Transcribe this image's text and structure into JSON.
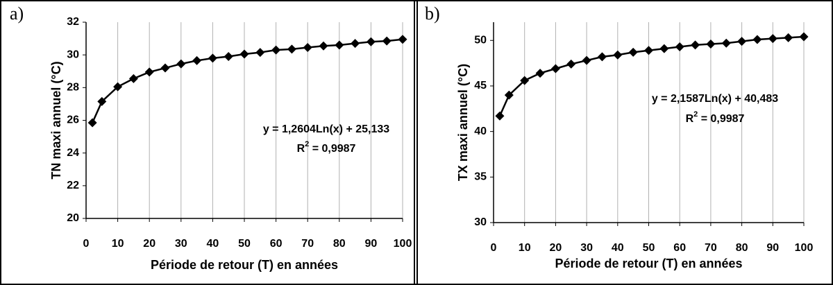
{
  "chart_data": [
    {
      "type": "line",
      "panel_label": "a)",
      "x": [
        2,
        5,
        10,
        15,
        20,
        25,
        30,
        35,
        40,
        45,
        50,
        55,
        60,
        65,
        70,
        75,
        80,
        85,
        90,
        95,
        100
      ],
      "series": [
        {
          "color": "#000000",
          "values": [
            25.85,
            27.15,
            28.05,
            28.55,
            28.95,
            29.2,
            29.45,
            29.65,
            29.8,
            29.9,
            30.05,
            30.15,
            30.3,
            30.35,
            30.45,
            30.55,
            30.6,
            30.7,
            30.8,
            30.85,
            30.95
          ]
        }
      ],
      "xlim": [
        0,
        100
      ],
      "xticks": [
        0,
        10,
        20,
        30,
        40,
        50,
        60,
        70,
        80,
        90,
        100
      ],
      "ylim": [
        20,
        32
      ],
      "yticks": [
        20,
        22,
        24,
        26,
        28,
        30,
        32
      ],
      "grid": true,
      "x_label": "Période de retour (T) en années",
      "y_label": "TN maxi annuel (°C)",
      "annotation": {
        "equation": "y = 1,2604Ln(x) + 25,133",
        "r2_base": "R",
        "r2_sup": "2",
        "r2_value": " = 0,9987"
      }
    },
    {
      "type": "line",
      "panel_label": "b)",
      "x": [
        2,
        5,
        10,
        15,
        20,
        25,
        30,
        35,
        40,
        45,
        50,
        55,
        60,
        65,
        70,
        75,
        80,
        85,
        90,
        95,
        100
      ],
      "series": [
        {
          "color": "#000000",
          "values": [
            41.7,
            44.0,
            45.6,
            46.4,
            46.9,
            47.4,
            47.8,
            48.2,
            48.4,
            48.7,
            48.9,
            49.1,
            49.3,
            49.5,
            49.6,
            49.7,
            49.9,
            50.1,
            50.2,
            50.3,
            50.4
          ]
        }
      ],
      "xlim": [
        0,
        100
      ],
      "xticks": [
        0,
        10,
        20,
        30,
        40,
        50,
        60,
        70,
        80,
        90,
        100
      ],
      "ylim": [
        30,
        52
      ],
      "yticks": [
        30,
        35,
        40,
        45,
        50
      ],
      "grid": true,
      "x_label": "Période de retour (T) en années",
      "y_label": "TX maxi annuel (°C)",
      "annotation": {
        "equation": "y = 2,1587Ln(x) + 40,483",
        "r2_base": "R",
        "r2_sup": "2",
        "r2_value": " = 0,9987"
      }
    }
  ]
}
